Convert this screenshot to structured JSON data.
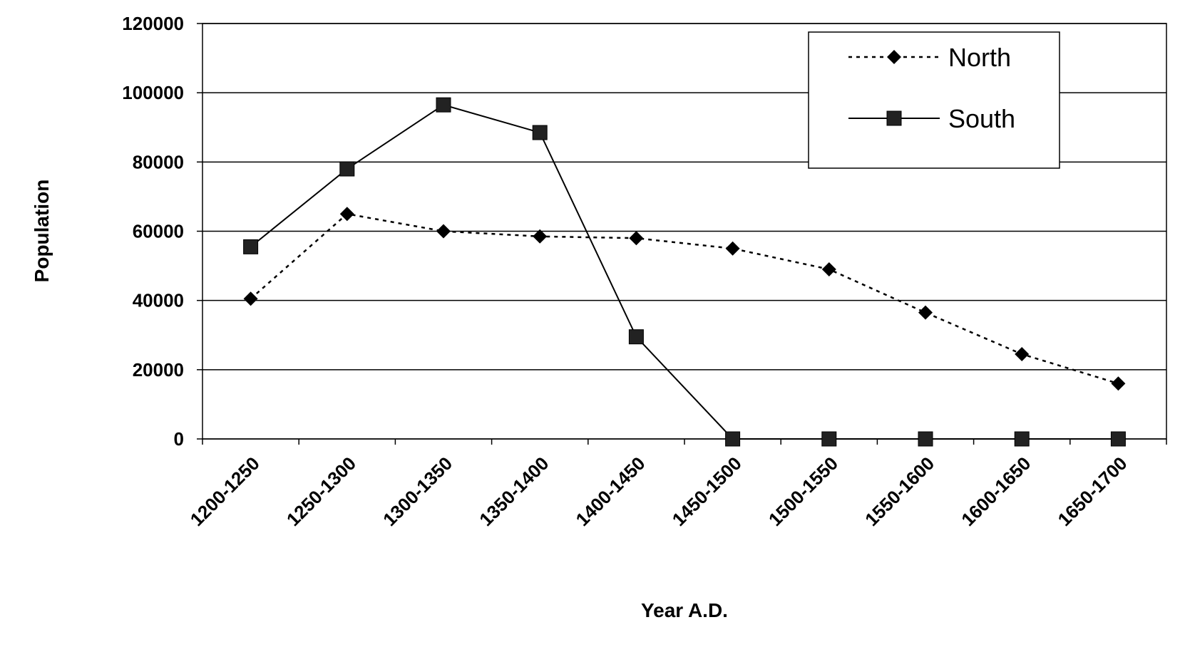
{
  "chart_data": {
    "type": "line",
    "xlabel": "Year A.D.",
    "ylabel": "Population",
    "ylim": [
      0,
      120000
    ],
    "yticks": [
      0,
      20000,
      40000,
      60000,
      80000,
      100000,
      120000
    ],
    "grid": "horizontal",
    "legend_position": "top-right",
    "categories": [
      "1200-1250",
      "1250-1300",
      "1300-1350",
      "1350-1400",
      "1400-1450",
      "1450-1500",
      "1500-1550",
      "1550-1600",
      "1600-1650",
      "1650-1700"
    ],
    "series": [
      {
        "name": "North",
        "style": "dotted",
        "marker": "diamond",
        "color": "#000000",
        "values": [
          40500,
          65000,
          60000,
          58500,
          58000,
          55000,
          49000,
          36500,
          24500,
          16000
        ]
      },
      {
        "name": "South",
        "style": "solid",
        "marker": "square",
        "color": "#000000",
        "values": [
          55500,
          78000,
          96500,
          88500,
          29500,
          0,
          0,
          0,
          0,
          0
        ]
      }
    ]
  }
}
